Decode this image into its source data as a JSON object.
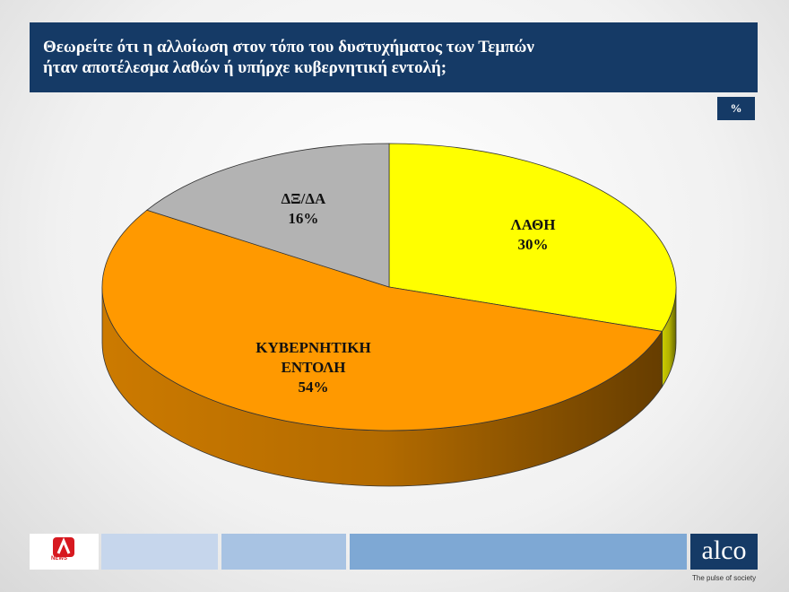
{
  "chart_data": {
    "type": "pie3d",
    "title": "Θεωρείτε ότι η αλλοίωση στον τόπο του δυστυχήματος των Τεμπών\nήταν αποτέλεσμα λαθών ή υπήρχε κυβερνητική εντολή;",
    "unit_label": "%",
    "categories": [
      "ΛΑΘΗ",
      "ΚΥΒΕΡΝΗΤΙΚΗ\nΕΝΤΟΛΗ",
      "ΔΞ/ΔΑ"
    ],
    "values": [
      30,
      54,
      16
    ],
    "value_labels": [
      "30%",
      "54%",
      "16%"
    ],
    "colors": [
      "#ffff00",
      "#ff9900",
      "#b3b3b3"
    ]
  },
  "footer": {
    "left_logo_text": "NEWS",
    "brand": "alco",
    "tagline": "The pulse of society"
  }
}
